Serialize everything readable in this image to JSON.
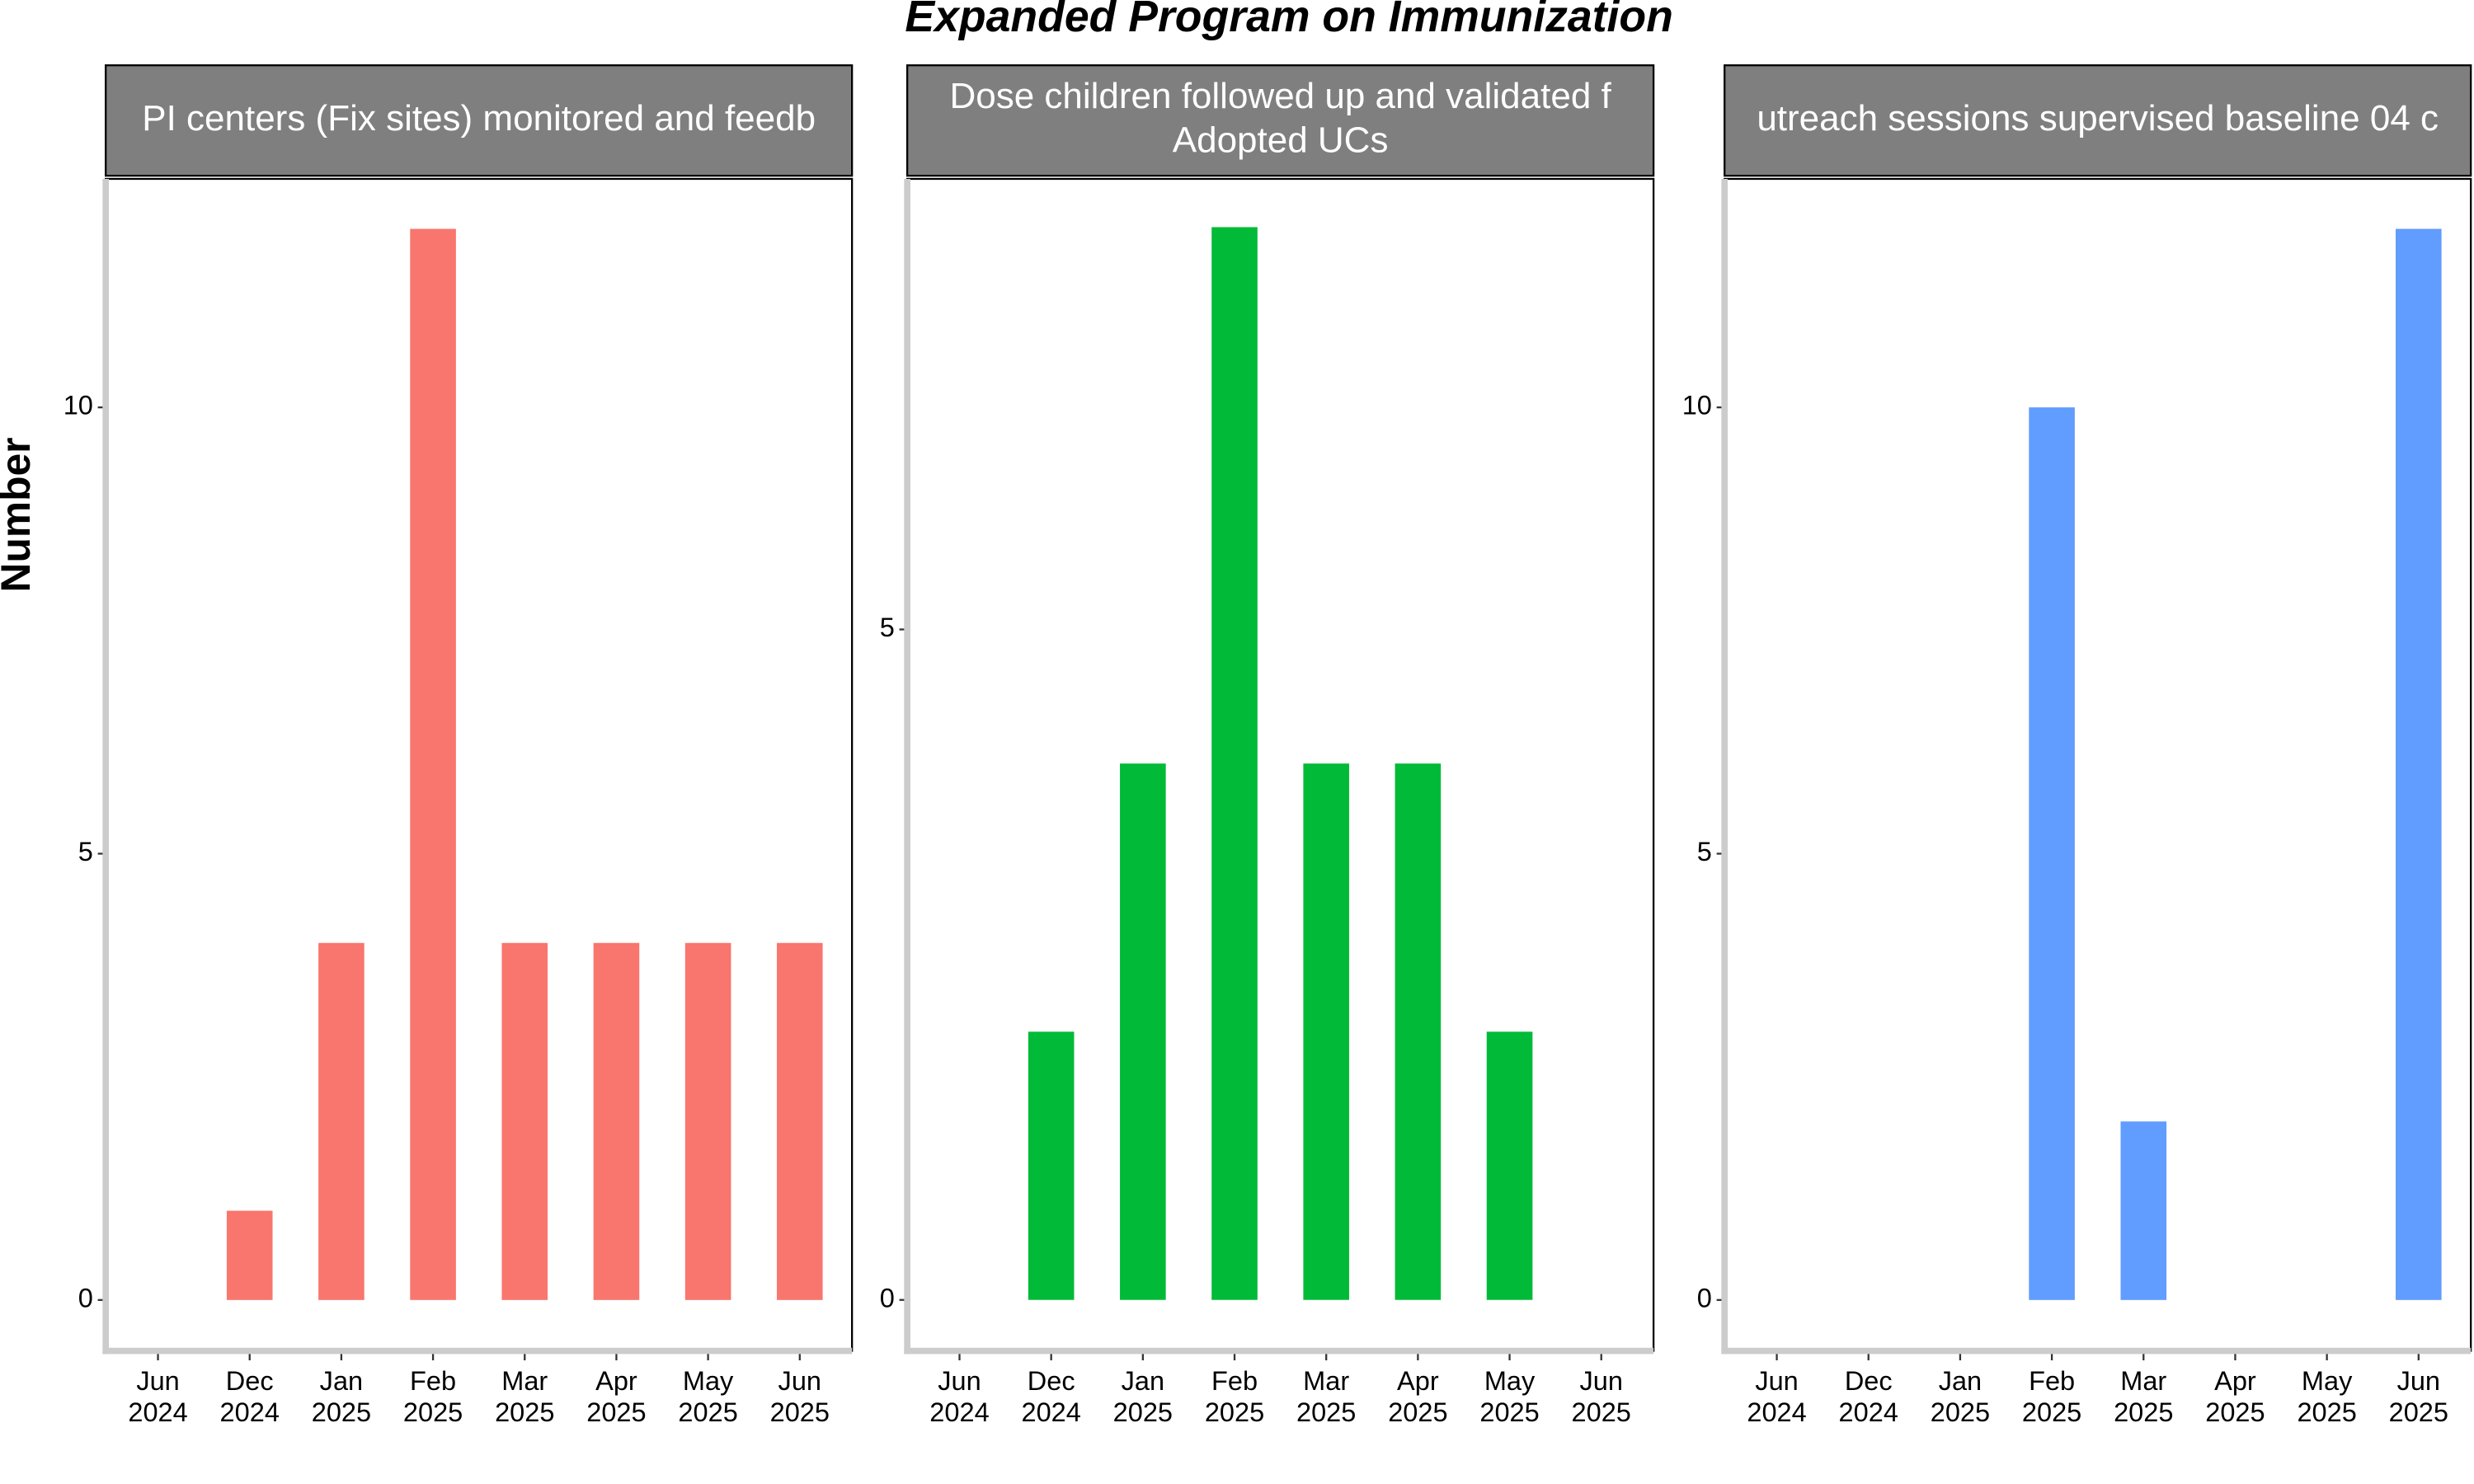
{
  "chart_data": {
    "type": "bar",
    "title": "Expanded Program on Immunization",
    "y_label": "Number",
    "facets": [
      {
        "strip": [
          "PI centers (Fix sites) monitored and feedb"
        ],
        "color": "#F8766D",
        "categories": [
          "Jun 2024",
          "Dec 2024",
          "Jan 2025",
          "Feb 2025",
          "Mar 2025",
          "Apr 2025",
          "May 2025",
          "Jun 2025"
        ],
        "values": [
          null,
          1,
          4,
          12,
          4,
          4,
          4,
          4
        ],
        "ylim": [
          -0.57,
          12.56
        ],
        "yticks": [
          0,
          5,
          10
        ]
      },
      {
        "strip": [
          "Dose children followed up and validated f",
          "Adopted UCs"
        ],
        "color": "#00BA38",
        "categories": [
          "Jun 2024",
          "Dec 2024",
          "Jan 2025",
          "Feb 2025",
          "Mar 2025",
          "Apr 2025",
          "May 2025",
          "Jun 2025"
        ],
        "values": [
          null,
          2,
          4,
          8,
          4,
          4,
          2,
          null
        ],
        "ylim": [
          -0.38,
          8.36
        ],
        "yticks": [
          0,
          5
        ]
      },
      {
        "strip": [
          "utreach sessions supervised baseline 04 c"
        ],
        "color": "#619CFF",
        "categories": [
          "Jun 2024",
          "Dec 2024",
          "Jan 2025",
          "Feb 2025",
          "Mar 2025",
          "Apr 2025",
          "May 2025",
          "Jun 2025"
        ],
        "values": [
          null,
          null,
          null,
          10,
          2,
          null,
          null,
          12
        ],
        "ylim": [
          -0.57,
          12.56
        ],
        "yticks": [
          0,
          5,
          10
        ]
      }
    ]
  }
}
